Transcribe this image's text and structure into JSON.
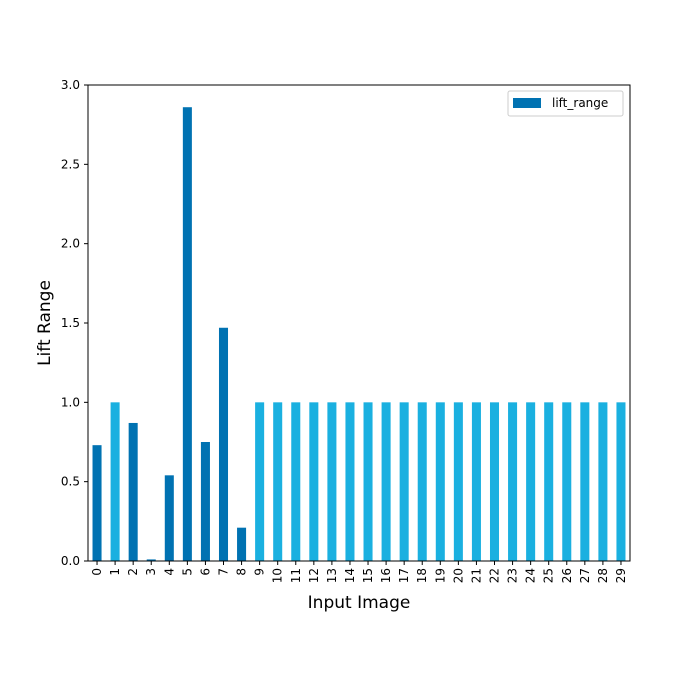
{
  "chart_data": {
    "type": "bar",
    "title": "",
    "xlabel": "Input Image",
    "ylabel": "Lift Range",
    "ylim": [
      0,
      3.0
    ],
    "yticks": [
      "0.0",
      "0.5",
      "1.0",
      "1.5",
      "2.0",
      "2.5",
      "3.0"
    ],
    "categories": [
      "0",
      "1",
      "2",
      "3",
      "4",
      "5",
      "6",
      "7",
      "8",
      "9",
      "10",
      "11",
      "12",
      "13",
      "14",
      "15",
      "16",
      "17",
      "18",
      "19",
      "20",
      "21",
      "22",
      "23",
      "24",
      "25",
      "26",
      "27",
      "28",
      "29"
    ],
    "values": [
      0.73,
      1.0,
      0.87,
      0.01,
      0.54,
      2.86,
      0.75,
      1.47,
      0.21,
      1.0,
      1.0,
      1.0,
      1.0,
      1.0,
      1.0,
      1.0,
      1.0,
      1.0,
      1.0,
      1.0,
      1.0,
      1.0,
      1.0,
      1.0,
      1.0,
      1.0,
      1.0,
      1.0,
      1.0,
      1.0
    ],
    "bar_colors": [
      "#0072b2",
      "#1ab0e0",
      "#0072b2",
      "#0072b2",
      "#0072b2",
      "#0072b2",
      "#0072b2",
      "#0072b2",
      "#0072b2",
      "#1ab0e0",
      "#1ab0e0",
      "#1ab0e0",
      "#1ab0e0",
      "#1ab0e0",
      "#1ab0e0",
      "#1ab0e0",
      "#1ab0e0",
      "#1ab0e0",
      "#1ab0e0",
      "#1ab0e0",
      "#1ab0e0",
      "#1ab0e0",
      "#1ab0e0",
      "#1ab0e0",
      "#1ab0e0",
      "#1ab0e0",
      "#1ab0e0",
      "#1ab0e0",
      "#1ab0e0",
      "#1ab0e0"
    ],
    "legend": {
      "placement": "top-right",
      "entries": [
        {
          "label": "lift_range",
          "color": "#0072b2"
        }
      ]
    },
    "grid": false
  }
}
